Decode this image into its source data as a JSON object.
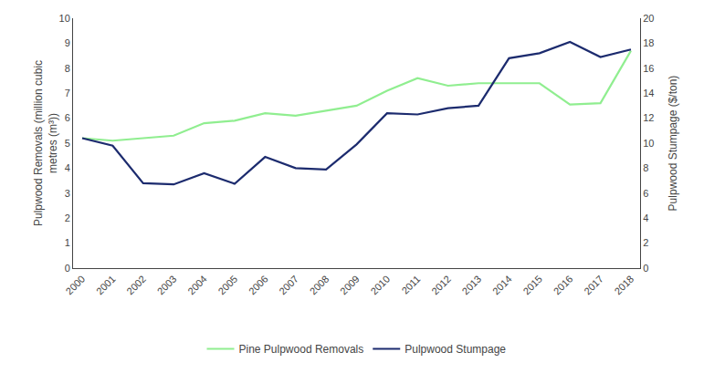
{
  "chart_data": {
    "type": "line",
    "x": [
      2000,
      2001,
      2002,
      2003,
      2004,
      2005,
      2006,
      2007,
      2008,
      2009,
      2010,
      2011,
      2012,
      2013,
      2014,
      2015,
      2016,
      2017,
      2018
    ],
    "xlim": [
      1999.7,
      2018.3
    ],
    "xticks": [
      2000,
      2001,
      2002,
      2003,
      2004,
      2005,
      2006,
      2007,
      2008,
      2009,
      2010,
      2011,
      2012,
      2013,
      2014,
      2015,
      2016,
      2017,
      2018
    ],
    "y_label": "Pulpwood Removals (million cubic\nmetres (m³))",
    "y2_label": "Pulpwood Stumpage ($/ton)",
    "ylim": [
      0,
      10
    ],
    "yticks": [
      0,
      1,
      2,
      3,
      4,
      5,
      6,
      7,
      8,
      9,
      10
    ],
    "y2lim": [
      0,
      20
    ],
    "y2ticks": [
      0,
      2,
      4,
      6,
      8,
      10,
      12,
      14,
      16,
      18,
      20
    ],
    "series": [
      {
        "name": "Pine Pulpwood Removals",
        "color": "#90EE90",
        "axis": "y",
        "values": [
          5.2,
          5.1,
          5.2,
          5.3,
          5.8,
          5.9,
          6.2,
          6.1,
          6.3,
          6.5,
          7.1,
          7.6,
          7.3,
          7.4,
          7.4,
          7.4,
          6.55,
          6.6,
          8.7
        ]
      },
      {
        "name": "Pulpwood Stumpage",
        "color": "#1C2B6E",
        "axis": "y2",
        "values": [
          10.4,
          9.8,
          6.8,
          6.7,
          7.6,
          6.75,
          8.9,
          8.0,
          7.9,
          9.9,
          12.4,
          12.3,
          12.8,
          13.0,
          16.8,
          17.2,
          18.1,
          16.9,
          17.5
        ]
      }
    ],
    "legend": "bottom",
    "grid": false
  }
}
